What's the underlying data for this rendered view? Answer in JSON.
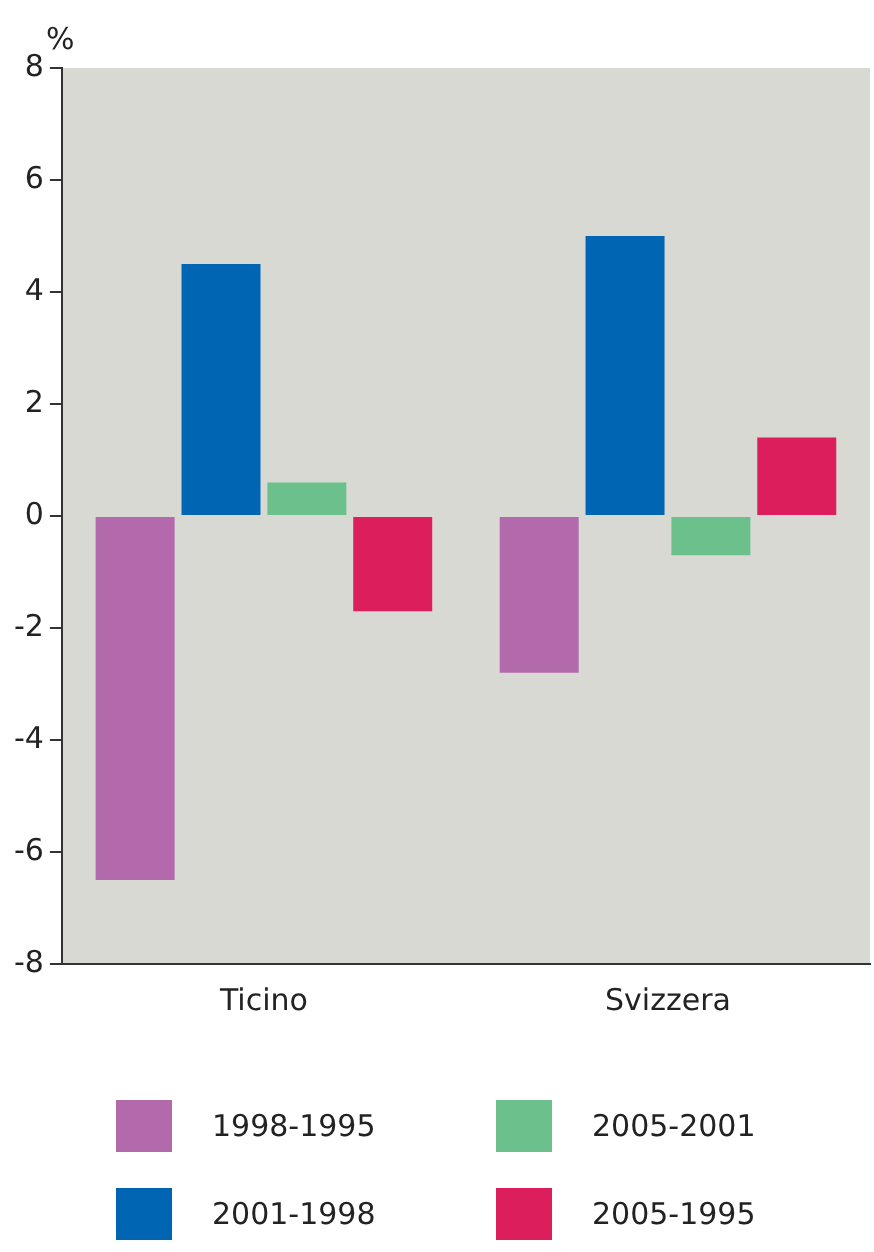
{
  "chart_data": {
    "type": "bar",
    "ylabel": "%",
    "categories": [
      "Ticino",
      "Svizzera"
    ],
    "series": [
      {
        "name": "1998-1995",
        "color": "#b36aad",
        "values": [
          -6.5,
          -2.8
        ]
      },
      {
        "name": "2001-1998",
        "color": "#0066b3",
        "values": [
          4.5,
          5.0
        ]
      },
      {
        "name": "2005-2001",
        "color": "#6cc08b",
        "values": [
          0.6,
          -0.7
        ]
      },
      {
        "name": "2005-1995",
        "color": "#dc1f5c",
        "values": [
          -1.7,
          1.4
        ]
      }
    ],
    "ylim": [
      -8,
      8
    ],
    "yticks": [
      -8,
      -6,
      -4,
      -2,
      0,
      2,
      4,
      6,
      8
    ],
    "grid": false,
    "legend": "bottom"
  }
}
